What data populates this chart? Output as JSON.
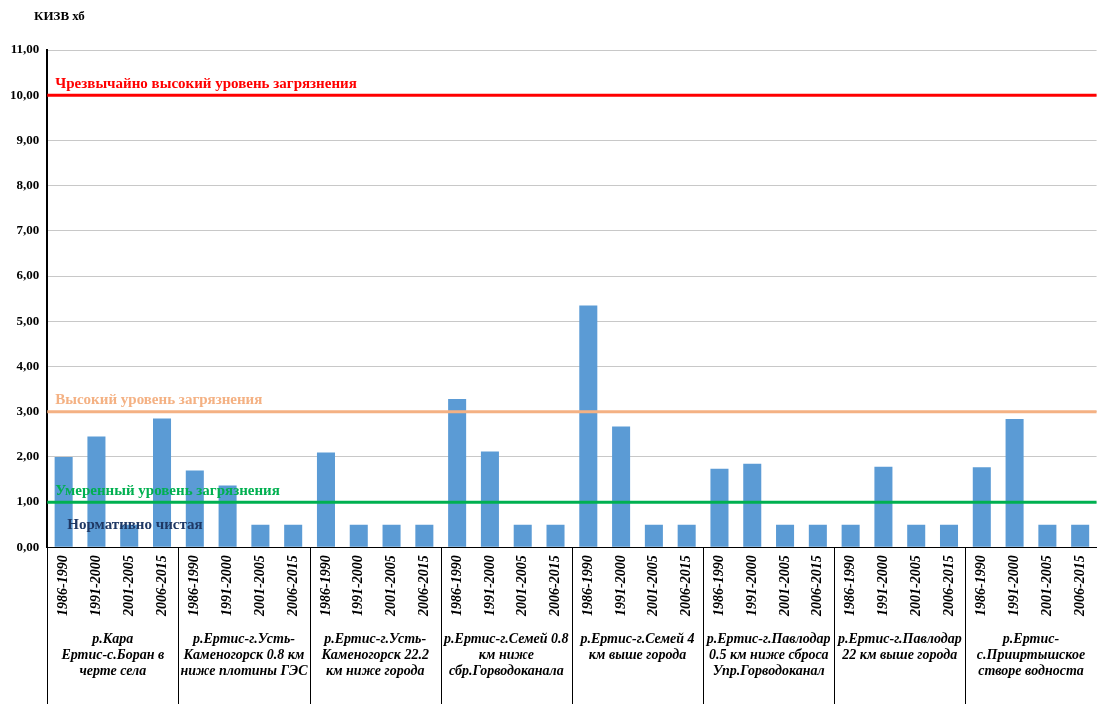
{
  "chart_data": {
    "type": "bar",
    "ylabel": "КИЗВ хб",
    "categories": [
      "1986-1990",
      "1991-2000",
      "2001-2005",
      "2006-2015",
      "1986-1990",
      "1991-2000",
      "2001-2005",
      "2006-2015",
      "1986-1990",
      "1991-2000",
      "2001-2005",
      "2006-2015",
      "1986-1990",
      "1991-2000",
      "2001-2005",
      "2006-2015",
      "1986-1990",
      "1991-2000",
      "2001-2005",
      "2006-2015",
      "1986-1990",
      "1991-2000",
      "2001-2005",
      "2006-2015",
      "1986-1990",
      "1991-2000",
      "2001-2005",
      "2006-2015",
      "1986-1990",
      "1991-2000",
      "2001-2005",
      "2006-2015"
    ],
    "values": [
      2.0,
      2.45,
      0.5,
      2.85,
      1.7,
      1.37,
      0.5,
      0.5,
      2.1,
      0.5,
      0.5,
      0.5,
      3.28,
      2.12,
      0.5,
      0.5,
      5.35,
      2.67,
      0.5,
      0.5,
      1.74,
      1.85,
      0.5,
      0.5,
      0.5,
      1.78,
      0.5,
      0.5,
      1.77,
      2.84,
      0.5,
      0.5
    ],
    "color": "#5b9bd5",
    "ylim": [
      0,
      11
    ],
    "yticks": [
      {
        "value": 0,
        "label": "0,00"
      },
      {
        "value": 1,
        "label": "1,00"
      },
      {
        "value": 2,
        "label": "2,00"
      },
      {
        "value": 3,
        "label": "3,00"
      },
      {
        "value": 4,
        "label": "4,00"
      },
      {
        "value": 5,
        "label": "5,00"
      },
      {
        "value": 6,
        "label": "6,00"
      },
      {
        "value": 7,
        "label": "7,00"
      },
      {
        "value": 8,
        "label": "8,00"
      },
      {
        "value": 9,
        "label": "9,00"
      },
      {
        "value": 10,
        "label": "10,00"
      },
      {
        "value": 11,
        "label": "11,00"
      }
    ],
    "grid": "y",
    "ref_lines": [
      {
        "axis": "y",
        "value": 10,
        "label": "Чрезвычайно высокий уровень загрязнения",
        "color": "#ff0000"
      },
      {
        "axis": "y",
        "value": 3,
        "label": "Высокий уровень загрязнения",
        "color": "#f4b183"
      },
      {
        "axis": "y",
        "value": 1,
        "label": "Умеренный уровень загрязнения",
        "color": "#00b050"
      }
    ],
    "annotations": [
      {
        "text": "Нормативно чистая",
        "y": 0.5
      },
      "р.Кара Ертис-с.Боран в черте села",
      "р.Ертис-г.Усть-Каменогорск 0.8 км ниже плотины ГЭС",
      "р.Ертис-г.Усть-Каменогорск 22.2 км ниже города",
      "р.Ертис-г.Семей 0.8 км ниже сбр.Горводоканала",
      "р.Ертис-г.Семей 4 км выше города",
      "р.Ертис-г.Павлодар 0.5 км ниже сброса Упр.Горводоканал",
      "р.Ертис-г.Павлодар 22 км выше города",
      "р.Ертис-с.Прииртышское створе водноста"
    ]
  }
}
